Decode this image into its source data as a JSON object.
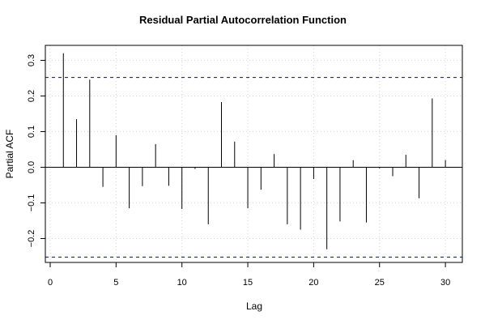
{
  "chart_data": {
    "type": "bar",
    "title": "Residual Partial Autocorrelation Function",
    "xlabel": "Lag",
    "ylabel": "Partial ACF",
    "xlim": [
      0,
      31
    ],
    "ylim": [
      -0.33,
      0.35
    ],
    "xticks": [
      0,
      5,
      10,
      15,
      20,
      25,
      30
    ],
    "yticks": [
      -0.2,
      -0.1,
      0.0,
      0.1,
      0.2,
      0.3
    ],
    "ytick_labels": [
      "−0.2",
      "−0.1",
      "0.0",
      "0.1",
      "0.2",
      "0.3"
    ],
    "confidence_band": [
      0.252,
      -0.252
    ],
    "grid": true,
    "colors": {
      "bars": "#000000",
      "confidence": "#0000cd",
      "grid": "#d3d3d3"
    },
    "x": [
      1,
      2,
      3,
      4,
      5,
      6,
      7,
      8,
      9,
      10,
      11,
      12,
      13,
      14,
      15,
      16,
      17,
      18,
      19,
      20,
      21,
      22,
      23,
      24,
      25,
      26,
      27,
      28,
      29,
      30
    ],
    "values": [
      0.32,
      0.135,
      0.246,
      -0.055,
      0.09,
      -0.115,
      -0.053,
      0.065,
      -0.052,
      -0.117,
      -0.005,
      -0.16,
      0.183,
      0.072,
      -0.115,
      -0.063,
      0.037,
      -0.16,
      -0.175,
      -0.033,
      -0.23,
      -0.152,
      0.02,
      -0.155,
      -0.003,
      -0.025,
      0.035,
      -0.087,
      0.193,
      0.02
    ]
  }
}
